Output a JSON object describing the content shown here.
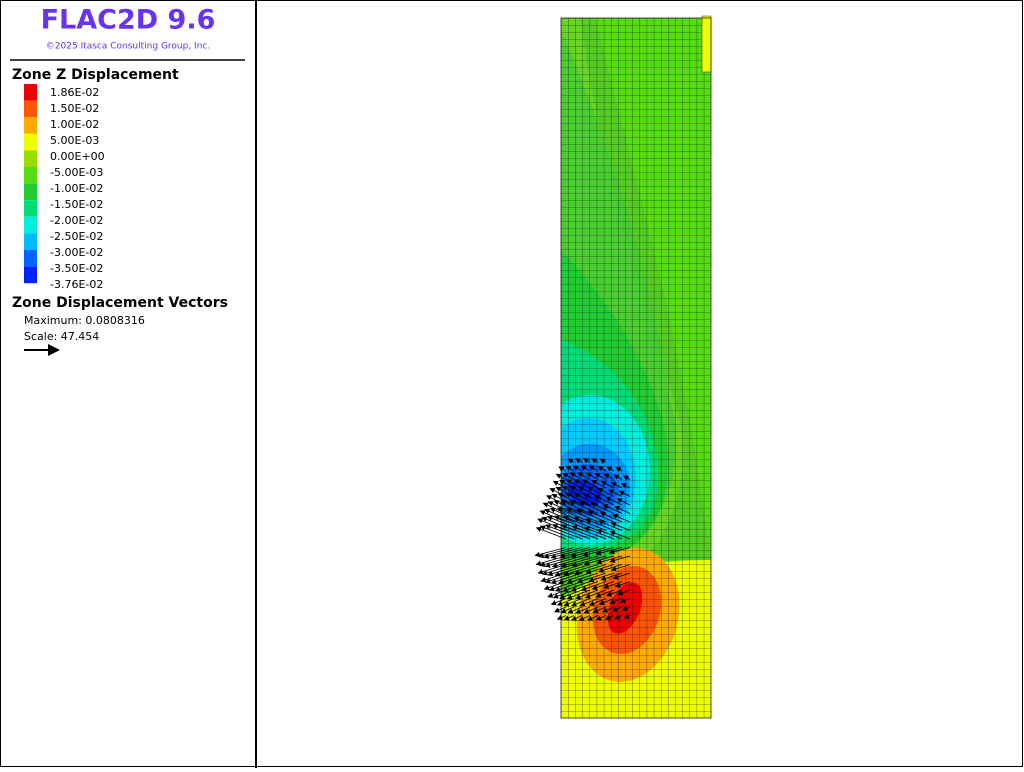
{
  "header": {
    "title": "FLAC2D 9.6",
    "copyright": "©2025 Itasca Consulting Group, Inc."
  },
  "legend": {
    "title": "Zone Z Displacement",
    "labels": [
      "1.86E-02",
      "1.50E-02",
      "1.00E-02",
      "5.00E-03",
      "0.00E+00",
      "-5.00E-03",
      "-1.00E-02",
      "-1.50E-02",
      "-2.00E-02",
      "-2.50E-02",
      "-3.00E-02",
      "-3.50E-02",
      "-3.76E-02"
    ],
    "colors": [
      "#ee0000",
      "#ff5500",
      "#ffaa00",
      "#eeff00",
      "#99dd00",
      "#55dd11",
      "#22cc33",
      "#00dd77",
      "#00eedd",
      "#00bbff",
      "#0066ff",
      "#0022ff"
    ]
  },
  "vectors": {
    "title": "Zone Displacement Vectors",
    "maximum": "Maximum: 0.0808316",
    "scale": "Scale: 47.454"
  }
}
